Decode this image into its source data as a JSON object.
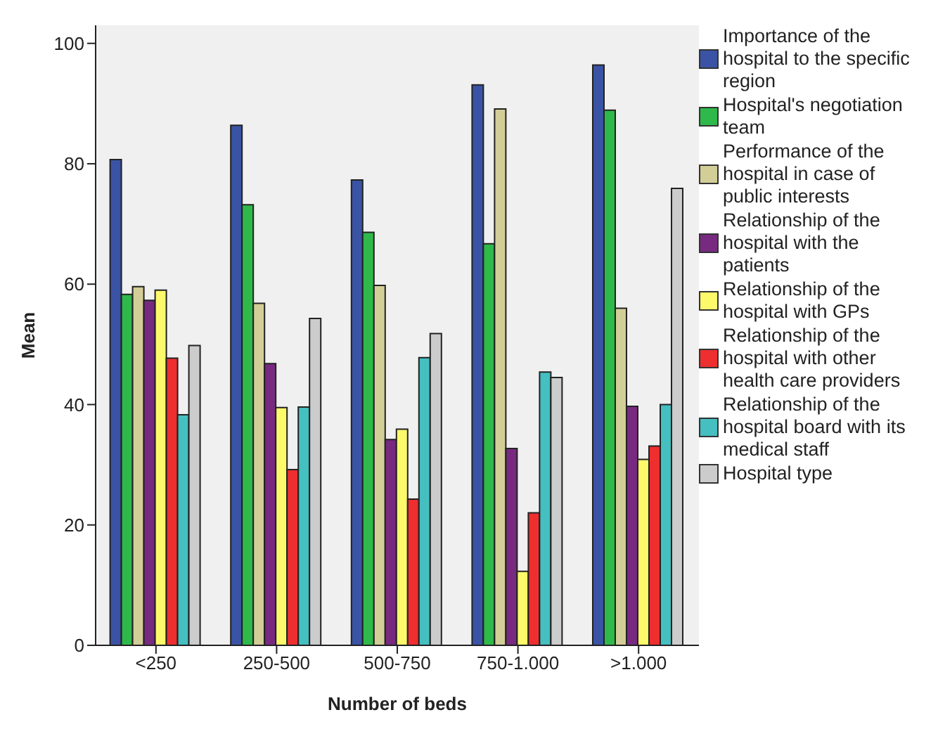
{
  "chart_data": {
    "type": "bar",
    "xlabel": "Number of beds",
    "ylabel": "Mean",
    "categories": [
      "<250",
      "250-500",
      "500-750",
      "750-1.000",
      ">1.000"
    ],
    "series": [
      {
        "name": "Importance of the hospital to the specific region",
        "color": "#3a53a4",
        "values": [
          80.7,
          86.4,
          77.3,
          93.1,
          96.4
        ]
      },
      {
        "name": "Hospital's negotiation team",
        "color": "#2fb94a",
        "values": [
          58.3,
          73.2,
          68.6,
          66.7,
          88.9
        ]
      },
      {
        "name": "Performance of the hospital in case of public interests",
        "color": "#d3ce97",
        "values": [
          59.6,
          56.8,
          59.8,
          89.1,
          56.0
        ]
      },
      {
        "name": "Relationship of the hospital with the patients",
        "color": "#782a80",
        "values": [
          57.3,
          46.8,
          34.2,
          32.7,
          39.7
        ]
      },
      {
        "name": "Relationship of the hospital with GPs",
        "color": "#fcf96b",
        "values": [
          59.0,
          39.5,
          35.9,
          12.3,
          30.9
        ]
      },
      {
        "name": "Relationship of the hospital with other health care providers",
        "color": "#ee2e2f",
        "values": [
          47.7,
          29.2,
          24.3,
          22.0,
          33.1
        ]
      },
      {
        "name": "Relationship of the hospital board with its medical staff",
        "color": "#45bfc0",
        "values": [
          38.3,
          39.6,
          47.8,
          45.4,
          40.0
        ]
      },
      {
        "name": "Hospital type",
        "color": "#cccccc",
        "values": [
          49.8,
          54.3,
          51.8,
          44.5,
          75.9
        ]
      }
    ],
    "ylim": [
      0,
      103
    ],
    "yticks": [
      0,
      20,
      40,
      60,
      80,
      100
    ],
    "grid": false,
    "legend": "right"
  }
}
